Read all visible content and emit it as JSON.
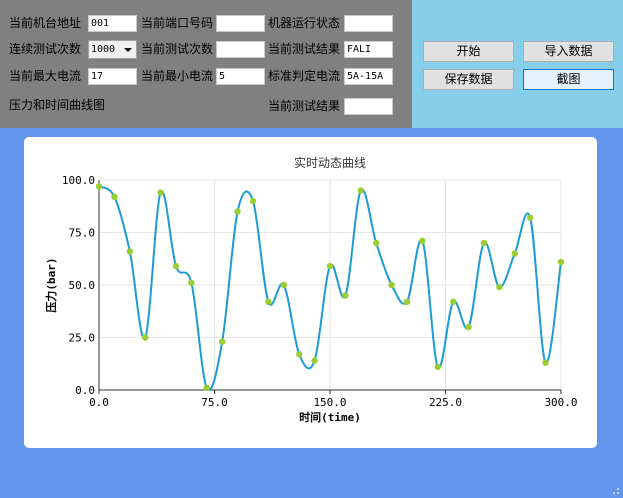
{
  "form": {
    "machine_addr_label": "当前机台地址",
    "machine_addr_value": "001",
    "port_label": "当前端口号码",
    "port_value": "",
    "status_label": "机器运行状态",
    "status_value": "",
    "continuous_label": "连续测试次数",
    "continuous_value": "1000",
    "current_count_label": "当前测试次数",
    "current_count_value": "",
    "current_result_label": "当前测试结果",
    "current_result_value": "FALI",
    "max_current_label": "当前最大电流",
    "max_current_value": "17",
    "min_current_label": "当前最小电流",
    "min_current_value": "5",
    "standard_label": "标准判定电流",
    "standard_value": "5A-15A",
    "curve_label": "压力和时间曲线图",
    "result2_label": "当前测试结果",
    "result2_value": ""
  },
  "buttons": {
    "start": "开始",
    "import": "导入数据",
    "save": "保存数据",
    "screenshot": "截图"
  },
  "colors": {
    "line": "#1e9ad6",
    "point": "#9acd32",
    "background": "#6495ed"
  },
  "chart_data": {
    "type": "line",
    "title": "实时动态曲线",
    "xlabel": "时间(time)",
    "ylabel": "压力(bar)",
    "xlim": [
      0,
      300
    ],
    "ylim": [
      0,
      100
    ],
    "x_ticks": [
      "0.0",
      "75.0",
      "150.0",
      "225.0",
      "300.0"
    ],
    "y_ticks": [
      "0.0",
      "25.0",
      "50.0",
      "75.0",
      "100.0"
    ],
    "grid": true,
    "x": [
      0,
      10,
      20,
      30,
      40,
      50,
      60,
      70,
      80,
      90,
      100,
      110,
      120,
      130,
      140,
      150,
      160,
      170,
      180,
      190,
      200,
      210,
      220,
      230,
      240,
      250,
      260,
      270,
      280,
      290,
      300
    ],
    "values": [
      97,
      92,
      66,
      25,
      94,
      59,
      51,
      1,
      23,
      85,
      90,
      42,
      50,
      17,
      14,
      59,
      45,
      95,
      70,
      50,
      42,
      71,
      11,
      42,
      30,
      70,
      49,
      65,
      82,
      13,
      61
    ]
  }
}
